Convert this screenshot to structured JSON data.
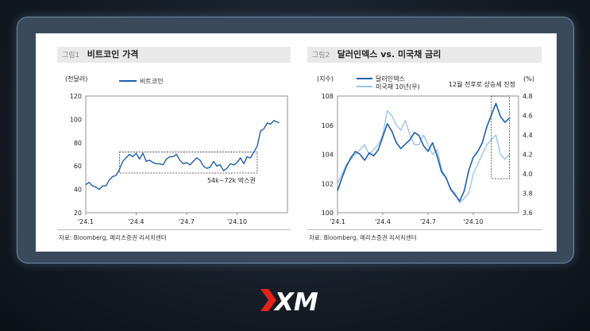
{
  "logo": {
    "text": "XM",
    "accent_color": "#e2231a"
  },
  "panel1": {
    "tag": "그림1",
    "title": "비트코인 가격",
    "source": "자료: Bloomberg, 메리츠증권 리서치센터",
    "annotation": "54k~72k 박스권"
  },
  "panel2": {
    "tag": "그림2",
    "title": "달러인덱스 vs. 미국채 금리",
    "source": "자료: Bloomberg, 메리츠증권 리서치센터",
    "annotation": "12월 전후로 상승세 진정"
  },
  "chart_data": [
    {
      "type": "line",
      "title": "비트코인 가격",
      "ylabel": "(천달러)",
      "ylim": [
        20,
        120
      ],
      "yticks": [
        20,
        40,
        60,
        80,
        100,
        120
      ],
      "xticks": [
        "'24.1",
        "'24.4",
        "'24.7",
        "'24.10"
      ],
      "xtick_pos": [
        0,
        3,
        6,
        9
      ],
      "xlim": [
        0,
        12
      ],
      "series": [
        {
          "name": "비트코인",
          "color": "#1f5fa8",
          "x": [
            0,
            0.2,
            0.4,
            0.6,
            0.8,
            1.0,
            1.2,
            1.4,
            1.6,
            1.8,
            2.0,
            2.2,
            2.4,
            2.6,
            2.8,
            3.0,
            3.2,
            3.4,
            3.6,
            3.8,
            4.0,
            4.2,
            4.4,
            4.6,
            4.8,
            5.0,
            5.2,
            5.4,
            5.6,
            5.8,
            6.0,
            6.2,
            6.4,
            6.6,
            6.8,
            7.0,
            7.2,
            7.4,
            7.6,
            7.8,
            8.0,
            8.2,
            8.4,
            8.6,
            8.8,
            9.0,
            9.2,
            9.4,
            9.6,
            9.8,
            10.0,
            10.2,
            10.4,
            10.6,
            10.8,
            11.0,
            11.2,
            11.5
          ],
          "values": [
            44,
            46,
            43,
            42,
            40,
            43,
            43,
            48,
            51,
            52,
            57,
            64,
            67,
            70,
            68,
            71,
            66,
            71,
            64,
            65,
            63,
            62,
            62,
            61,
            66,
            68,
            68,
            70,
            65,
            62,
            63,
            61,
            64,
            67,
            65,
            60,
            58,
            59,
            64,
            60,
            61,
            56,
            58,
            62,
            61,
            63,
            67,
            62,
            68,
            67,
            72,
            77,
            90,
            92,
            97,
            96,
            99,
            97
          ]
        }
      ],
      "box": {
        "x": [
          2.0,
          10.2
        ],
        "y": [
          54,
          72
        ],
        "label": "54k~72k 박스권"
      }
    },
    {
      "type": "line",
      "title": "달러인덱스 vs. 미국채 금리",
      "ylabel_left": "(지수)",
      "ylabel_right": "(%)",
      "ylim_left": [
        100,
        108
      ],
      "yticks_left": [
        100,
        102,
        104,
        106,
        108
      ],
      "ylim_right": [
        3.6,
        4.8
      ],
      "yticks_right": [
        3.6,
        3.8,
        4.0,
        4.2,
        4.4,
        4.6,
        4.8
      ],
      "xticks": [
        "'24.1",
        "'24.4",
        "'24.7",
        "'24.10"
      ],
      "xtick_pos": [
        0,
        3,
        6,
        9
      ],
      "xlim": [
        0,
        12
      ],
      "series": [
        {
          "name": "달러인덱스",
          "axis": "left",
          "color": "#1f5fa8",
          "x": [
            0,
            0.3,
            0.6,
            0.9,
            1.2,
            1.5,
            1.8,
            2.1,
            2.4,
            2.7,
            3.0,
            3.3,
            3.6,
            3.9,
            4.2,
            4.5,
            4.8,
            5.1,
            5.4,
            5.7,
            6.0,
            6.3,
            6.6,
            6.9,
            7.2,
            7.5,
            7.8,
            8.1,
            8.4,
            8.7,
            9.0,
            9.3,
            9.6,
            9.9,
            10.2,
            10.5,
            10.8,
            11.1,
            11.4
          ],
          "values": [
            101.5,
            102.4,
            103.2,
            103.8,
            104.2,
            104.0,
            103.6,
            104.1,
            103.9,
            104.3,
            105.2,
            106.1,
            105.6,
            104.8,
            104.4,
            104.7,
            105.0,
            105.5,
            105.3,
            104.6,
            104.2,
            104.8,
            103.9,
            102.8,
            102.4,
            101.6,
            101.2,
            100.8,
            101.5,
            102.9,
            103.8,
            104.2,
            104.8,
            105.9,
            106.7,
            107.5,
            106.6,
            106.2,
            106.5
          ]
        },
        {
          "name": "미국채 10년(우)",
          "axis": "right",
          "color": "#9cc4ec",
          "x": [
            0,
            0.3,
            0.6,
            0.9,
            1.2,
            1.5,
            1.8,
            2.1,
            2.4,
            2.7,
            3.0,
            3.3,
            3.6,
            3.9,
            4.2,
            4.5,
            4.8,
            5.1,
            5.4,
            5.7,
            6.0,
            6.3,
            6.6,
            6.9,
            7.2,
            7.5,
            7.8,
            8.1,
            8.4,
            8.7,
            9.0,
            9.3,
            9.6,
            9.9,
            10.2,
            10.5,
            10.8,
            11.1,
            11.4
          ],
          "values": [
            3.9,
            4.0,
            4.1,
            4.15,
            4.2,
            4.25,
            4.3,
            4.2,
            4.25,
            4.3,
            4.4,
            4.65,
            4.6,
            4.5,
            4.45,
            4.55,
            4.4,
            4.3,
            4.3,
            4.4,
            4.3,
            4.2,
            4.25,
            4.05,
            3.95,
            3.85,
            3.8,
            3.7,
            3.75,
            3.8,
            4.0,
            4.1,
            4.2,
            4.3,
            4.35,
            4.4,
            4.2,
            4.15,
            4.2
          ]
        }
      ],
      "box": {
        "x": [
          10.2,
          11.4
        ],
        "y_right": [
          3.95,
          4.8
        ],
        "label": "12월 전후로 상승세 진정"
      }
    }
  ]
}
